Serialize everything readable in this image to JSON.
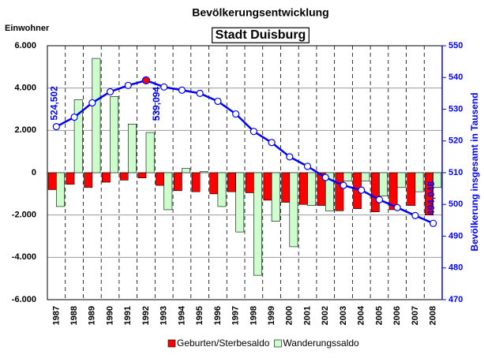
{
  "chart_data": {
    "type": "bar",
    "title": "Bevölkerungsentwicklung",
    "subtitle": "Stadt Duisburg",
    "y_axis_label": "Einwohner",
    "y2_axis_label": "Bevölkerung insgesamt in Tausend",
    "categories": [
      "1987",
      "1988",
      "1989",
      "1990",
      "1991",
      "1992",
      "1993",
      "1994",
      "1995",
      "1996",
      "1997",
      "1998",
      "1999",
      "2000",
      "2001",
      "2002",
      "2003",
      "2004",
      "2005",
      "2006",
      "2007",
      "2008"
    ],
    "series": [
      {
        "name": "Geburten/Sterbesaldo",
        "type": "bar",
        "color": "#ff0000",
        "values": [
          -800,
          -550,
          -700,
          -450,
          -350,
          -250,
          -600,
          -850,
          -900,
          -1000,
          -900,
          -950,
          -1300,
          -1400,
          -1500,
          -1550,
          -1800,
          -1700,
          -1850,
          -1750,
          -1550,
          -2000
        ]
      },
      {
        "name": "Wanderungssaldo",
        "type": "bar",
        "color": "#ccffcc",
        "values": [
          -1600,
          3450,
          5400,
          3600,
          2300,
          1900,
          -1750,
          200,
          50,
          -1600,
          -2800,
          -4850,
          -2300,
          -3500,
          -1550,
          -1800,
          -400,
          -400,
          -1100,
          -700,
          -900,
          -700
        ]
      },
      {
        "type": "line",
        "axis": "y2",
        "color": "#0000ff",
        "values": [
          524.502,
          527.5,
          532,
          535.5,
          537.5,
          539.094,
          537,
          536,
          535,
          532.5,
          528.5,
          523,
          519.5,
          515,
          512,
          508.5,
          506,
          504.5,
          501.5,
          499,
          496.5,
          494.048
        ],
        "value_labels": [
          "524,502",
          null,
          null,
          null,
          null,
          "539,094",
          null,
          null,
          null,
          null,
          null,
          null,
          null,
          null,
          null,
          null,
          null,
          null,
          null,
          null,
          null,
          "494,048"
        ],
        "highlight": {
          "index": 5,
          "color": "#ff0000"
        }
      }
    ],
    "ylim": [
      -6000,
      6000
    ],
    "yticks": [
      {
        "value": -6000,
        "label": "-6.000"
      },
      {
        "value": -4000,
        "label": "-4.000"
      },
      {
        "value": -2000,
        "label": "-2.000"
      },
      0,
      {
        "value": 2000,
        "label": "2.000"
      },
      {
        "value": 4000,
        "label": "4.000"
      },
      {
        "value": 6000,
        "label": "6.000"
      }
    ],
    "y2lim": [
      470,
      550
    ],
    "y2ticks": [
      470,
      480,
      490,
      500,
      510,
      520,
      530,
      540,
      550
    ],
    "grid": true,
    "legend": "bottom"
  }
}
